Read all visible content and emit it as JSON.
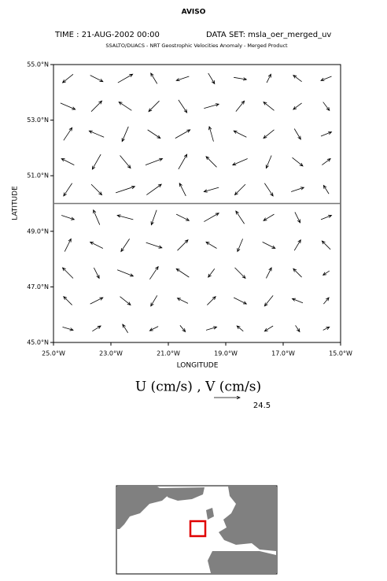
{
  "chart_data": {
    "type": "quiver",
    "title": "AVISO",
    "time_label": "TIME : 21-AUG-2002 00:00",
    "dataset_label": "DATA SET: msla_oer_merged_uv",
    "subtitle": "SSALTO/DUACS - NRT Geostrophic Velocities Anomaly - Merged Product",
    "x_label": "LONGITUDE",
    "y_label": "LATITUDE",
    "vector_label": "U (cm/s) , V (cm/s)",
    "reference_vector": 24.5,
    "xlim": [
      -25,
      -15
    ],
    "ylim": [
      45,
      55
    ],
    "xticks": [
      {
        "value": -25,
        "label": "25.0°W"
      },
      {
        "value": -23,
        "label": "23.0°W"
      },
      {
        "value": -21,
        "label": "21.0°W"
      },
      {
        "value": -19,
        "label": "19.0°W"
      },
      {
        "value": -17,
        "label": "17.0°W"
      },
      {
        "value": -15,
        "label": "15.0°W"
      }
    ],
    "yticks": [
      {
        "value": 45,
        "label": "45.0°N"
      },
      {
        "value": 47,
        "label": "47.0°N"
      },
      {
        "value": 49,
        "label": "49.0°N"
      },
      {
        "value": 51,
        "label": "51.0°N"
      },
      {
        "value": 53,
        "label": "53.0°N"
      },
      {
        "value": 55,
        "label": "55.0°N"
      }
    ],
    "hline": 50,
    "color": "#000000",
    "x": [
      -24.5,
      -23.5,
      -22.5,
      -21.5,
      -20.5,
      -19.5,
      -18.5,
      -17.5,
      -16.5,
      -15.5
    ],
    "y": [
      45.5,
      46.5,
      47.5,
      48.5,
      49.5,
      50.5,
      51.5,
      52.5,
      53.5,
      54.5
    ],
    "u": [
      [
        10,
        8,
        -5,
        -8,
        5,
        10,
        -6,
        -8,
        4,
        6
      ],
      [
        -8,
        12,
        10,
        -6,
        -10,
        8,
        12,
        -8,
        -10,
        5
      ],
      [
        -10,
        5,
        15,
        8,
        -12,
        -6,
        10,
        5,
        -8,
        -6
      ],
      [
        6,
        -12,
        -8,
        15,
        10,
        -10,
        -5,
        12,
        6,
        -8
      ],
      [
        12,
        -6,
        -15,
        -5,
        12,
        14,
        -8,
        -10,
        5,
        10
      ],
      [
        -8,
        10,
        18,
        14,
        -6,
        -14,
        -10,
        8,
        12,
        -5
      ],
      [
        -12,
        -8,
        10,
        16,
        8,
        -10,
        -14,
        -5,
        10,
        8
      ],
      [
        8,
        -14,
        -6,
        12,
        14,
        -4,
        -12,
        -10,
        6,
        10
      ],
      [
        14,
        10,
        -12,
        -10,
        8,
        14,
        8,
        -10,
        -8,
        6
      ],
      [
        -10,
        12,
        14,
        -6,
        -12,
        6,
        12,
        4,
        -8,
        -10
      ]
    ],
    "v": [
      [
        -3,
        5,
        8,
        -4,
        -6,
        3,
        5,
        -5,
        -6,
        3
      ],
      [
        8,
        6,
        -8,
        -10,
        5,
        8,
        -6,
        -10,
        4,
        6
      ],
      [
        10,
        -10,
        -6,
        12,
        8,
        -8,
        -10,
        10,
        8,
        -4
      ],
      [
        12,
        6,
        -12,
        -5,
        10,
        6,
        -12,
        -6,
        10,
        8
      ],
      [
        -4,
        14,
        4,
        -14,
        -6,
        8,
        12,
        -6,
        -10,
        4
      ],
      [
        -12,
        -10,
        6,
        10,
        12,
        -4,
        -10,
        -12,
        4,
        8
      ],
      [
        6,
        -14,
        -12,
        6,
        14,
        10,
        -6,
        -12,
        -8,
        6
      ],
      [
        12,
        6,
        -14,
        -8,
        8,
        14,
        6,
        -8,
        -10,
        4
      ],
      [
        -6,
        10,
        8,
        -10,
        -12,
        4,
        10,
        8,
        -6,
        -8
      ],
      [
        -8,
        -6,
        8,
        10,
        -4,
        -10,
        -2,
        8,
        6,
        -4
      ]
    ]
  }
}
